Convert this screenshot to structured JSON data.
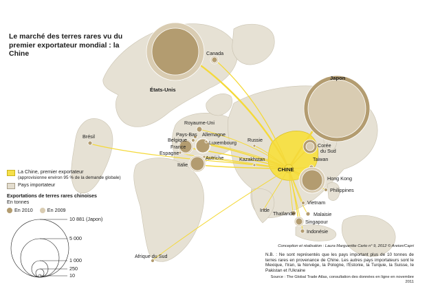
{
  "title": "Le marché des terres rares vu du premier exportateur mondial : la Chine",
  "colors": {
    "flow": "#f4d93a",
    "bubble_2010": "#b39c70",
    "bubble_2009": "#d9ccb2",
    "land": "#e6e1d4",
    "sea": "#ffffff",
    "china": "#f6e04a"
  },
  "legend": {
    "exporter_label": "La Chine, premier exportateur",
    "exporter_note": "(approvisionne environ 95 % de la demande globale)",
    "importer_label": "Pays importateur",
    "exports_title": "Exportations de terres rares chinoises",
    "unit": "En tonnes",
    "year_2010": "En 2010",
    "year_2009": "En 2009",
    "scale_labels": [
      "10 881 (Japon)",
      "5 000",
      "1 000",
      "250",
      "10"
    ]
  },
  "map_labels": {
    "china": "CHINE",
    "usa": "États-Unis",
    "japan": "Japon",
    "canada": "Canada",
    "brazil": "Brésil",
    "uk": "Royaume-Uni",
    "netherlands": "Pays-Bas",
    "germany": "Allemagne",
    "belgium": "Belgique",
    "luxembourg": "Luxembourg",
    "france": "France",
    "spain": "Espagne",
    "austria": "Autriche",
    "italy": "Italie",
    "russia": "Russie",
    "kazakhstan": "Kazakhstan",
    "korea": "Corée du Sud",
    "taiwan": "Taiwan",
    "hongkong": "Hong Kong",
    "philippines": "Philippines",
    "vietnam": "Vietnam",
    "thailand": "Thaïlande",
    "malaysia": "Malaisie",
    "singapore": "Singapour",
    "indonesia": "Indonésie",
    "india": "Inde",
    "south_africa": "Afrique du Sud"
  },
  "notes": {
    "credit": "Conception et réalisation : Laura Margueritte   Carto n° 9, 2012 © Areion/Capri",
    "nb": "N.B. : Ne sont représentés que les pays important plus de 10 tonnes de terres rares en provenance de Chine. Les autres pays importateurs sont le Mexique, l'Iran, la Norvège, la Pologne, l'Estonie, la Turquie, la Suisse, le Pakistan et l'Ukraine",
    "source": "Source : The Global Trade Atlas, consultation des données en ligne en novembre 2011"
  }
}
